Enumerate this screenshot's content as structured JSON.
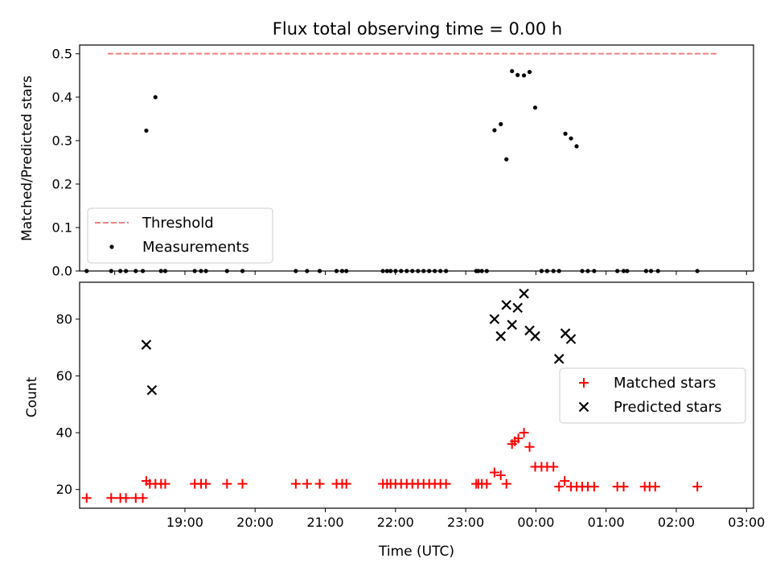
{
  "chart_data": [
    {
      "type": "scatter",
      "title": "Flux total observing time = 0.00 h",
      "ylabel": "Matched/Predicted stars",
      "xlabel": "",
      "xlim": [
        -0.5,
        9.1
      ],
      "ylim": [
        0,
        0.52
      ],
      "yticks": [
        0,
        0.1,
        0.2,
        0.3,
        0.4,
        0.5
      ],
      "ytick_labels": [
        "0.0",
        "0.1",
        "0.2",
        "0.3",
        "0.4",
        "0.5"
      ],
      "xticks": [
        0,
        1,
        2,
        3,
        4,
        5,
        6,
        7,
        8,
        9
      ],
      "threshold": {
        "name": "Threshold",
        "value": 0.5,
        "x_range": [
          -0.1,
          8.6
        ],
        "color": "#f28080"
      },
      "series": [
        {
          "name": "Measurements",
          "color": "#000000",
          "x": [
            -0.4,
            -0.05,
            0.08,
            0.16,
            0.3,
            0.4,
            0.45,
            0.58,
            0.66,
            0.72,
            1.14,
            1.23,
            1.3,
            1.6,
            1.82,
            2.58,
            2.74,
            2.92,
            3.16,
            3.24,
            3.3,
            3.82,
            3.88,
            3.93,
            4.0,
            4.08,
            4.16,
            4.24,
            4.32,
            4.4,
            4.48,
            4.56,
            4.64,
            4.72,
            5.15,
            5.18,
            5.23,
            5.3,
            5.41,
            5.5,
            5.58,
            5.66,
            5.74,
            5.83,
            5.91,
            5.99,
            6.08,
            6.16,
            6.25,
            6.33,
            6.42,
            6.5,
            6.58,
            6.66,
            6.74,
            6.83,
            7.16,
            7.25,
            7.3,
            7.57,
            7.64,
            7.74,
            8.3
          ],
          "y": [
            0,
            0,
            0,
            0,
            0,
            0,
            0.323,
            0.4,
            0,
            0,
            0,
            0,
            0,
            0,
            0,
            0,
            0,
            0,
            0,
            0,
            0,
            0,
            0,
            0,
            0,
            0,
            0,
            0,
            0,
            0,
            0,
            0,
            0,
            0,
            0,
            0,
            0,
            0,
            0.324,
            0.338,
            0.257,
            0.46,
            0.451,
            0.45,
            0.458,
            0.376,
            0,
            0,
            0,
            0,
            0.316,
            0.305,
            0.287,
            0,
            0,
            0,
            0,
            0,
            0,
            0,
            0,
            0,
            0
          ]
        }
      ]
    },
    {
      "type": "scatter",
      "title": "",
      "xlabel": "Time (UTC)",
      "ylabel": "Count",
      "xlim": [
        -0.5,
        9.1
      ],
      "ylim": [
        13.4,
        93
      ],
      "yticks": [
        20,
        40,
        60,
        80
      ],
      "ytick_labels": [
        "20",
        "40",
        "60",
        "80"
      ],
      "xticks": [
        1,
        2,
        3,
        4,
        5,
        6,
        7,
        8,
        9
      ],
      "xtick_labels": [
        "19:00",
        "20:00",
        "21:00",
        "22:00",
        "23:00",
        "00:00",
        "01:00",
        "02:00",
        "03:00"
      ],
      "series": [
        {
          "name": "Matched stars",
          "color": "#ff0000",
          "marker": "plus",
          "x": [
            -0.4,
            -0.05,
            0.08,
            0.16,
            0.3,
            0.4,
            0.45,
            0.5,
            0.58,
            0.66,
            0.72,
            1.14,
            1.23,
            1.3,
            1.6,
            1.82,
            2.58,
            2.74,
            2.92,
            3.16,
            3.24,
            3.3,
            3.82,
            3.88,
            3.93,
            4.0,
            4.08,
            4.16,
            4.24,
            4.32,
            4.4,
            4.48,
            4.56,
            4.64,
            4.72,
            5.15,
            5.18,
            5.23,
            5.3,
            5.41,
            5.5,
            5.58,
            5.66,
            5.7,
            5.75,
            5.83,
            5.91,
            5.99,
            6.08,
            6.16,
            6.25,
            6.33,
            6.41,
            6.5,
            6.58,
            6.66,
            6.74,
            6.83,
            7.16,
            7.25,
            7.55,
            7.62,
            7.7,
            8.3
          ],
          "y": [
            17,
            17,
            17,
            17,
            17,
            17,
            23,
            22,
            22,
            22,
            22,
            22,
            22,
            22,
            22,
            22,
            22,
            22,
            22,
            22,
            22,
            22,
            22,
            22,
            22,
            22,
            22,
            22,
            22,
            22,
            22,
            22,
            22,
            22,
            22,
            22,
            22,
            22,
            22,
            26,
            25,
            22,
            36,
            37,
            38,
            40,
            35,
            28,
            28,
            28,
            28,
            21,
            23,
            21,
            21,
            21,
            21,
            21,
            21,
            21,
            21,
            21,
            21,
            21
          ]
        },
        {
          "name": "Predicted stars",
          "color": "#000000",
          "marker": "x",
          "x": [
            0.45,
            0.53,
            5.41,
            5.5,
            5.58,
            5.66,
            5.74,
            5.83,
            5.91,
            5.99,
            6.33,
            6.42,
            6.5
          ],
          "y": [
            71,
            55,
            80,
            74,
            85,
            78,
            84,
            89,
            76,
            74,
            66,
            75,
            73
          ]
        }
      ]
    }
  ]
}
